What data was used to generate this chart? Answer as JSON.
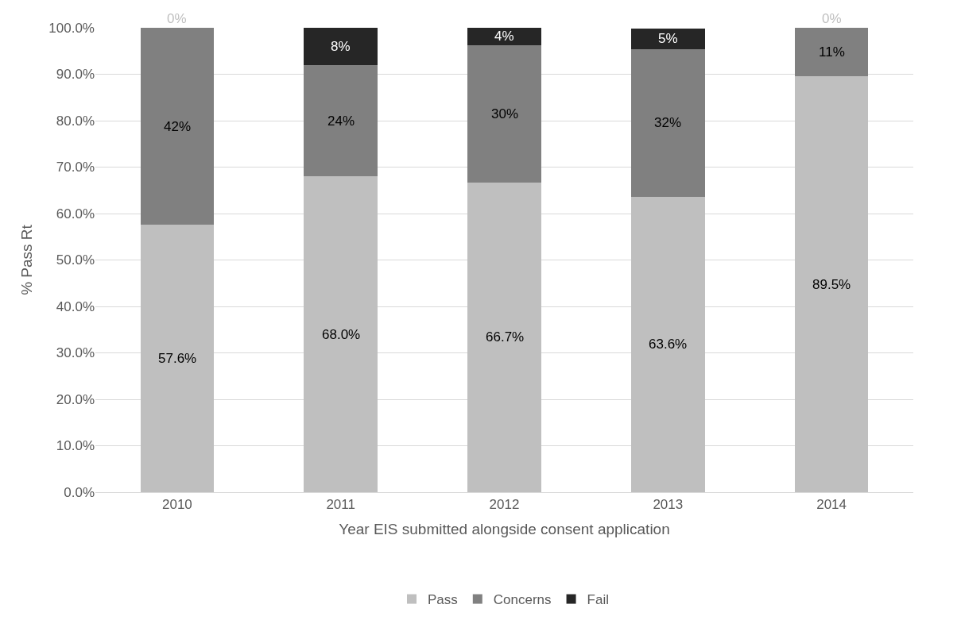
{
  "chart_data": {
    "type": "bar",
    "stacked": true,
    "xlabel": "Year EIS submitted alongside consent application",
    "ylabel": "% Pass Rt",
    "categories": [
      "2010",
      "2011",
      "2012",
      "2013",
      "2014"
    ],
    "series": [
      {
        "name": "Pass",
        "color": "#bfbfbf",
        "values": [
          57.6,
          68.0,
          66.7,
          63.6,
          89.5
        ],
        "value_labels": [
          "57.6%",
          "68.0%",
          "66.7%",
          "63.6%",
          "89.5%"
        ]
      },
      {
        "name": "Concerns",
        "color": "#808080",
        "values": [
          42.4,
          24.0,
          29.6,
          31.8,
          10.5
        ],
        "value_labels": [
          "42%",
          "24%",
          "30%",
          "32%",
          "11%"
        ]
      },
      {
        "name": "Fail",
        "color": "#262626",
        "values": [
          0,
          8.0,
          3.7,
          4.5,
          0
        ],
        "value_labels": [
          "0%",
          "8%",
          "4%",
          "5%",
          "0%"
        ]
      }
    ],
    "ylim": [
      0,
      100
    ],
    "yticks": [
      {
        "value": 0,
        "label": "0.0%"
      },
      {
        "value": 10,
        "label": "10.0%"
      },
      {
        "value": 20,
        "label": "20.0%"
      },
      {
        "value": 30,
        "label": "30.0%"
      },
      {
        "value": 40,
        "label": "40.0%"
      },
      {
        "value": 50,
        "label": "50.0%"
      },
      {
        "value": 60,
        "label": "60.0%"
      },
      {
        "value": 70,
        "label": "70.0%"
      },
      {
        "value": 80,
        "label": "80.0%"
      },
      {
        "value": 90,
        "label": "90.0%"
      },
      {
        "value": 100,
        "label": "100.0%"
      }
    ],
    "grid": "y",
    "legend": "bottom"
  }
}
